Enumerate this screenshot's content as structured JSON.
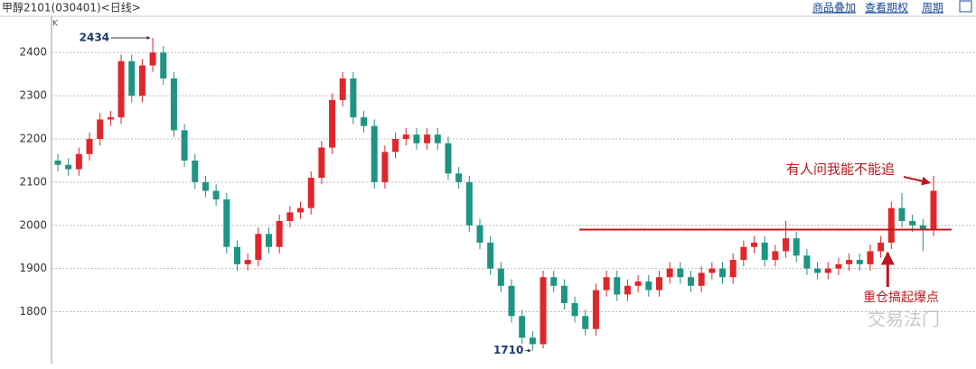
{
  "chart_data": {
    "type": "candlestick",
    "title": "甲醇2101(030401)<日线>",
    "toolbar": [
      "商品叠加",
      "查看期权",
      "周期"
    ],
    "y_label": "K",
    "watermark": "交易法门",
    "up_color": "#e0262b",
    "down_color": "#1e9483",
    "open": [
      2150,
      2140,
      2130,
      2165,
      2200,
      2245,
      2250,
      2380,
      2300,
      2370,
      2400,
      2340,
      2220,
      2150,
      2100,
      2080,
      2060,
      1950,
      1910,
      1920,
      1980,
      1950,
      2010,
      2030,
      2040,
      2110,
      2180,
      2290,
      2340,
      2250,
      2230,
      2100,
      2170,
      2200,
      2210,
      2190,
      2210,
      2190,
      2120,
      2100,
      2000,
      1960,
      1900,
      1860,
      1790,
      1740,
      1725,
      1880,
      1860,
      1820,
      1790,
      1760,
      1850,
      1880,
      1840,
      1860,
      1870,
      1850,
      1880,
      1900,
      1880,
      1860,
      1890,
      1900,
      1880,
      1920,
      1950,
      1960,
      1920,
      1940,
      1970,
      1930,
      1900,
      1890,
      1900,
      1910,
      1920,
      1910,
      1940,
      1960,
      2040,
      2010,
      2000,
      1990
    ],
    "high": [
      2165,
      2155,
      2180,
      2215,
      2260,
      2265,
      2395,
      2395,
      2385,
      2434,
      2415,
      2355,
      2235,
      2165,
      2115,
      2095,
      2075,
      1965,
      1935,
      1995,
      1995,
      2025,
      2045,
      2055,
      2125,
      2195,
      2305,
      2355,
      2355,
      2265,
      2245,
      2185,
      2215,
      2225,
      2225,
      2225,
      2225,
      2205,
      2135,
      2115,
      2015,
      1975,
      1915,
      1875,
      1805,
      1755,
      1895,
      1895,
      1875,
      1835,
      1805,
      1865,
      1895,
      1895,
      1875,
      1885,
      1885,
      1895,
      1915,
      1915,
      1895,
      1905,
      1915,
      1915,
      1935,
      1965,
      1975,
      1975,
      1955,
      2010,
      1985,
      1945,
      1915,
      1915,
      1925,
      1935,
      1935,
      1955,
      1975,
      2055,
      2075,
      2025,
      2015,
      2115
    ],
    "low": [
      2125,
      2115,
      2115,
      2150,
      2185,
      2230,
      2235,
      2285,
      2285,
      2355,
      2325,
      2205,
      2135,
      2085,
      2065,
      2045,
      1935,
      1895,
      1895,
      1905,
      1935,
      1935,
      1995,
      2015,
      2025,
      2095,
      2165,
      2275,
      2235,
      2215,
      2085,
      2085,
      2155,
      2185,
      2175,
      2175,
      2175,
      2105,
      2085,
      1985,
      1945,
      1885,
      1845,
      1775,
      1725,
      1710,
      1715,
      1845,
      1805,
      1775,
      1745,
      1745,
      1835,
      1825,
      1825,
      1845,
      1835,
      1835,
      1865,
      1865,
      1845,
      1845,
      1875,
      1865,
      1865,
      1905,
      1935,
      1905,
      1905,
      1925,
      1915,
      1885,
      1875,
      1875,
      1885,
      1895,
      1895,
      1895,
      1925,
      1945,
      1995,
      1985,
      1940,
      1975
    ],
    "close": [
      2140,
      2130,
      2165,
      2200,
      2245,
      2250,
      2380,
      2300,
      2370,
      2400,
      2340,
      2220,
      2150,
      2100,
      2080,
      2060,
      1950,
      1910,
      1920,
      1980,
      1950,
      2010,
      2030,
      2040,
      2110,
      2180,
      2290,
      2340,
      2250,
      2230,
      2100,
      2170,
      2200,
      2210,
      2190,
      2210,
      2190,
      2120,
      2100,
      2000,
      1960,
      1900,
      1860,
      1790,
      1740,
      1725,
      1880,
      1860,
      1820,
      1790,
      1760,
      1850,
      1880,
      1840,
      1860,
      1870,
      1850,
      1880,
      1900,
      1880,
      1860,
      1890,
      1900,
      1880,
      1920,
      1950,
      1960,
      1920,
      1940,
      1970,
      1930,
      1900,
      1890,
      1900,
      1910,
      1920,
      1910,
      1940,
      1960,
      2040,
      2010,
      2000,
      1990,
      2080
    ],
    "ylim": [
      1680,
      2484
    ],
    "yticks": [
      1800,
      1900,
      2000,
      2100,
      2200,
      2300,
      2400
    ],
    "grid": true,
    "hline": {
      "value": 1990,
      "color": "#c0171e"
    },
    "annotations": [
      "有人问我能不能追",
      "重仓搞起爆点"
    ],
    "annotation_color": "#c0171e"
  }
}
